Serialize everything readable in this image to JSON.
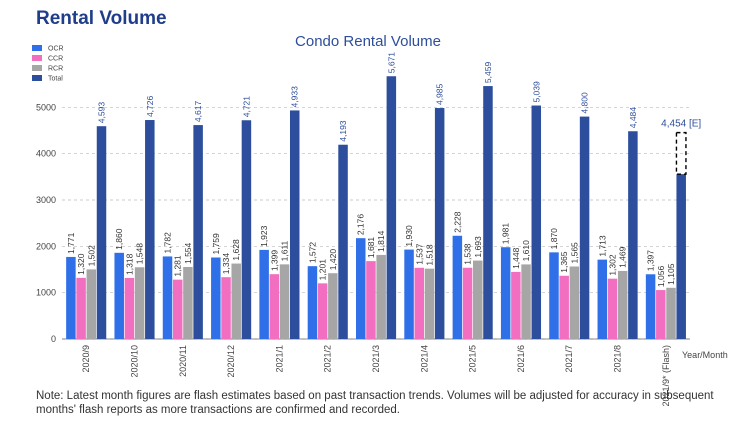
{
  "header": {
    "title": "Rental Volume"
  },
  "chart_data": {
    "type": "bar",
    "title": "Condo Rental Volume",
    "x_label": "Year/Month",
    "categories": [
      "2020/9",
      "2020/10",
      "2020/11",
      "2020/12",
      "2021/1",
      "2021/2",
      "2021/3",
      "2021/4",
      "2021/5",
      "2021/6",
      "2021/7",
      "2021/8",
      "2021/9* (Flash)"
    ],
    "series": [
      {
        "name": "OCR",
        "color": "#2f6fe8",
        "values": [
          1771,
          1860,
          1782,
          1759,
          1923,
          1572,
          2176,
          1930,
          2228,
          1981,
          1870,
          1713,
          1397
        ],
        "value_labels": [
          "1,771",
          "1,860",
          "1,782",
          "1,759",
          "1,923",
          "1,572",
          "2,176",
          "1,930",
          "2,228",
          "1,981",
          "1,870",
          "1,713",
          "1,397"
        ]
      },
      {
        "name": "CCR",
        "color": "#f26ec0",
        "values": [
          1320,
          1318,
          1281,
          1334,
          1399,
          1201,
          1681,
          1537,
          1538,
          1448,
          1365,
          1302,
          1056
        ],
        "value_labels": [
          "1,320",
          "1,318",
          "1,281",
          "1,334",
          "1,399",
          "1,201",
          "1,681",
          "1,537",
          "1,538",
          "1,448",
          "1,365",
          "1,302",
          "1,056"
        ]
      },
      {
        "name": "RCR",
        "color": "#a6a6a6",
        "values": [
          1502,
          1548,
          1554,
          1628,
          1611,
          1420,
          1814,
          1518,
          1693,
          1610,
          1565,
          1469,
          1105
        ],
        "value_labels": [
          "1,502",
          "1,548",
          "1,554",
          "1,628",
          "1,611",
          "1,420",
          "1,814",
          "1,518",
          "1,693",
          "1,610",
          "1,565",
          "1,469",
          "1,105"
        ]
      },
      {
        "name": "Total",
        "color": "#2d4e9c",
        "values": [
          4593,
          4726,
          4617,
          4721,
          4933,
          4193,
          5671,
          4985,
          5459,
          5039,
          4800,
          4484,
          3558
        ],
        "value_labels": [
          "4,593",
          "4,726",
          "4,617",
          "4,721",
          "4,933",
          "4,193",
          "5,671",
          "4,985",
          "5,459",
          "5,039",
          "4,800",
          "4,484",
          null
        ]
      }
    ],
    "estimate": {
      "value": 4454,
      "label": "4,454 [E]"
    },
    "ylim": [
      0,
      6000
    ],
    "yticks": [
      0,
      1000,
      2000,
      3000,
      4000,
      5000
    ],
    "grid": true,
    "legend": "top-left"
  },
  "note": "Note: Latest month figures are flash estimates based on past transaction trends. Volumes will be adjusted for accuracy in subsequent months' flash reports as more transactions are confirmed and recorded."
}
